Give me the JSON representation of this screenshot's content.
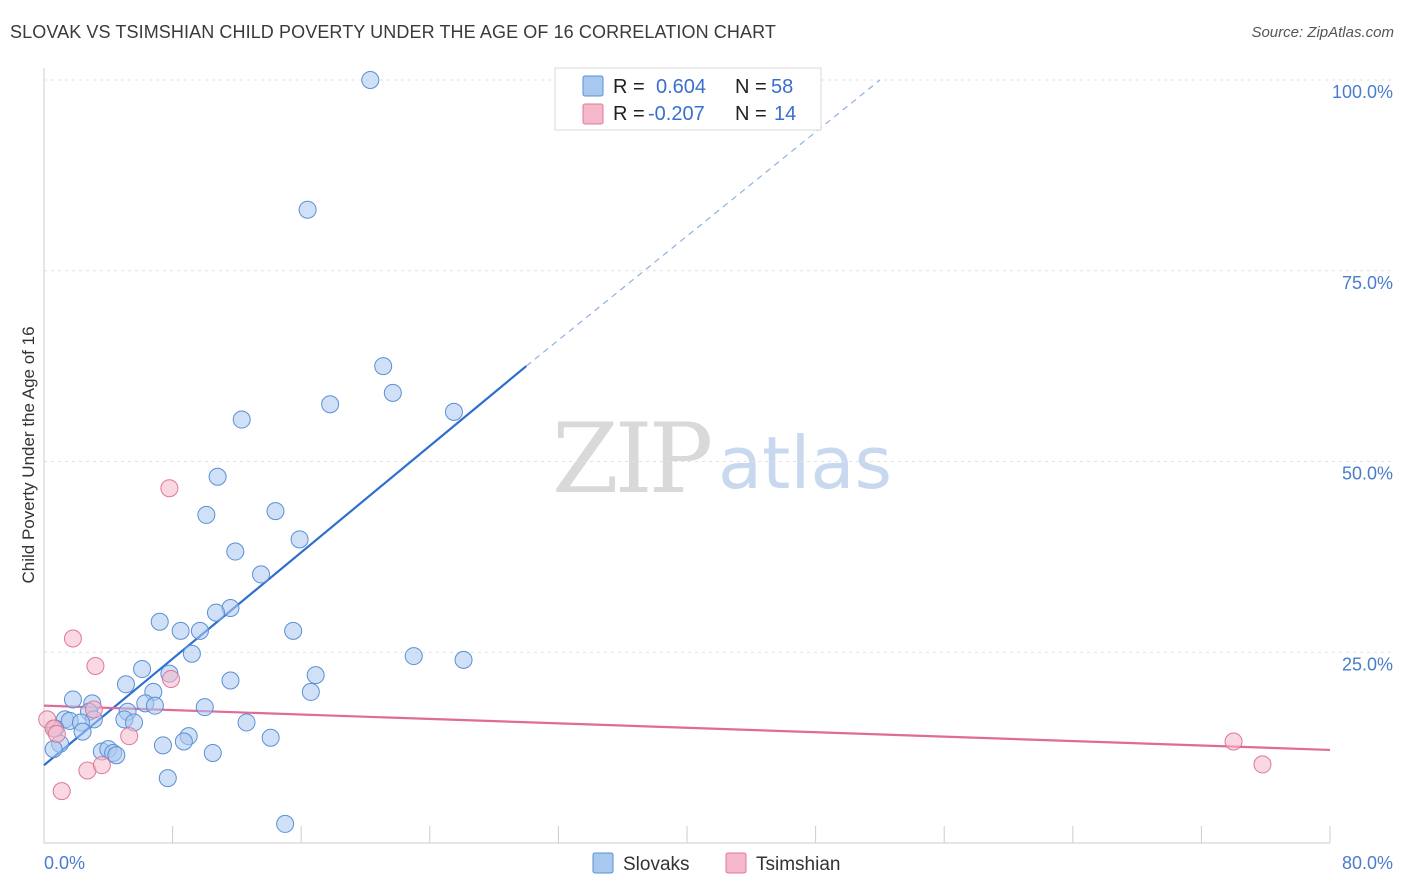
{
  "title": "SLOVAK VS TSIMSHIAN CHILD POVERTY UNDER THE AGE OF 16 CORRELATION CHART",
  "source": "Source: ZipAtlas.com",
  "watermark": {
    "zip": "ZIP",
    "atlas": "atlas"
  },
  "legend": {
    "rows": [
      {
        "r_label": "R =",
        "r_value": "0.604",
        "n_label": "N =",
        "n_value": "58",
        "color": "#a9c8f0"
      },
      {
        "r_label": "R =",
        "r_value": "-0.207",
        "n_label": "N =",
        "n_value": "14",
        "color": "#f5b8cb"
      }
    ]
  },
  "bottom_legend": [
    {
      "label": "Slovaks",
      "color": "#a9c8f0"
    },
    {
      "label": "Tsimshian",
      "color": "#f5b8cb"
    }
  ],
  "chart_data": {
    "type": "scatter",
    "title": "SLOVAK VS TSIMSHIAN CHILD POVERTY UNDER THE AGE OF 16 CORRELATION CHART",
    "xlabel": "",
    "ylabel": "Child Poverty Under the Age of 16",
    "xlim": [
      0,
      80
    ],
    "ylim": [
      0,
      100
    ],
    "x_tick_labels": [
      "0.0%",
      "80.0%"
    ],
    "y_ticks": [
      25,
      50,
      75,
      100
    ],
    "y_tick_labels": [
      "25.0%",
      "50.0%",
      "75.0%",
      "100.0%"
    ],
    "series": [
      {
        "name": "Slovaks",
        "color": "#a9c8f0",
        "stroke": "#5b8fd6",
        "trend_color": "#2f6fd0",
        "trend": {
          "x0": 0,
          "y0": 10.2,
          "x1": 30,
          "y1": 62.5,
          "dash_to_x": 52,
          "dash_to_y": 100
        },
        "points": [
          [
            20.3,
            100.0
          ],
          [
            16.4,
            83.0
          ],
          [
            21.1,
            62.5
          ],
          [
            21.7,
            59.0
          ],
          [
            17.8,
            57.5
          ],
          [
            25.5,
            56.5
          ],
          [
            12.3,
            55.5
          ],
          [
            10.8,
            48.0
          ],
          [
            10.1,
            43.0
          ],
          [
            14.4,
            43.5
          ],
          [
            11.9,
            38.2
          ],
          [
            15.9,
            39.8
          ],
          [
            13.5,
            35.2
          ],
          [
            11.6,
            30.8
          ],
          [
            10.7,
            30.2
          ],
          [
            7.2,
            29.0
          ],
          [
            8.5,
            27.8
          ],
          [
            9.7,
            27.8
          ],
          [
            15.5,
            27.8
          ],
          [
            9.2,
            24.8
          ],
          [
            23.0,
            24.5
          ],
          [
            26.1,
            24.0
          ],
          [
            6.1,
            22.8
          ],
          [
            7.8,
            22.2
          ],
          [
            5.1,
            20.8
          ],
          [
            11.6,
            21.3
          ],
          [
            16.9,
            22.0
          ],
          [
            6.8,
            19.8
          ],
          [
            16.6,
            19.8
          ],
          [
            1.8,
            18.8
          ],
          [
            3.0,
            18.3
          ],
          [
            6.3,
            18.3
          ],
          [
            6.9,
            18.0
          ],
          [
            10.0,
            17.8
          ],
          [
            2.8,
            17.2
          ],
          [
            5.2,
            17.2
          ],
          [
            1.3,
            16.2
          ],
          [
            1.6,
            16.0
          ],
          [
            3.1,
            16.2
          ],
          [
            5.0,
            16.2
          ],
          [
            2.3,
            15.8
          ],
          [
            5.6,
            15.8
          ],
          [
            12.6,
            15.8
          ],
          [
            0.7,
            15.0
          ],
          [
            2.4,
            14.6
          ],
          [
            9.0,
            14.0
          ],
          [
            14.1,
            13.8
          ],
          [
            8.7,
            13.3
          ],
          [
            1.0,
            13.0
          ],
          [
            7.4,
            12.8
          ],
          [
            0.6,
            12.3
          ],
          [
            3.6,
            12.0
          ],
          [
            4.0,
            12.3
          ],
          [
            4.3,
            11.8
          ],
          [
            10.5,
            11.8
          ],
          [
            4.5,
            11.5
          ],
          [
            7.7,
            8.5
          ],
          [
            15.0,
            2.5
          ]
        ]
      },
      {
        "name": "Tsimshian",
        "color": "#f5b8cb",
        "stroke": "#e07799",
        "trend_color": "#e06b95",
        "trend": {
          "x0": 0,
          "y0": 18.0,
          "x1": 80,
          "y1": 12.2
        },
        "points": [
          [
            0.2,
            16.2
          ],
          [
            0.6,
            15.0
          ],
          [
            0.8,
            14.3
          ],
          [
            1.8,
            26.8
          ],
          [
            3.2,
            23.2
          ],
          [
            3.1,
            17.5
          ],
          [
            5.3,
            14.0
          ],
          [
            7.8,
            46.5
          ],
          [
            7.9,
            21.5
          ],
          [
            2.7,
            9.5
          ],
          [
            3.6,
            10.2
          ],
          [
            1.1,
            6.8
          ],
          [
            74.0,
            13.3
          ],
          [
            75.8,
            10.3
          ]
        ]
      }
    ]
  }
}
